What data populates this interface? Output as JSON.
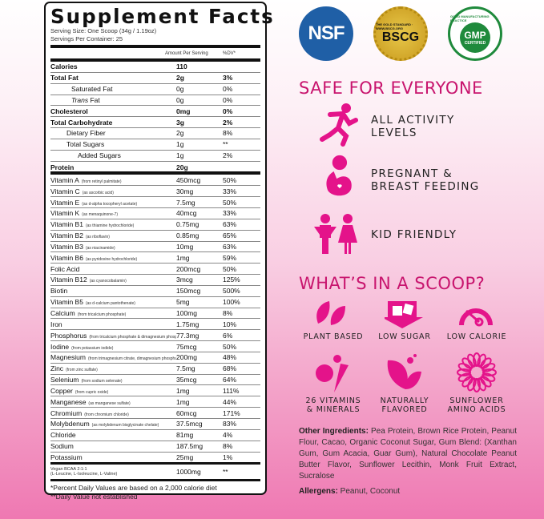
{
  "label": {
    "title": "Supplement Facts",
    "serving_size": "Serving Size: One Scoop (34g / 1.19oz)",
    "servings_per_container": "Servings Per Container: 25",
    "col_amount": "Amount Per Serving",
    "col_dv": "%DV*",
    "macros": [
      {
        "name": "Calories",
        "amount": "110",
        "dv": "",
        "bold": true,
        "indent": 0
      },
      {
        "name": "Total Fat",
        "amount": "2g",
        "dv": "3%",
        "bold": true,
        "indent": 0
      },
      {
        "name": "Saturated Fat",
        "amount": "0g",
        "dv": "0%",
        "bold": false,
        "indent": 2
      },
      {
        "name": "Trans Fat",
        "amount": "0g",
        "dv": "0%",
        "bold": false,
        "indent": 2,
        "italic": "Trans"
      },
      {
        "name": "Cholesterol",
        "amount": "0mg",
        "dv": "0%",
        "bold": true,
        "indent": 0
      },
      {
        "name": "Total Carbohydrate",
        "amount": "3g",
        "dv": "2%",
        "bold": true,
        "indent": 0
      },
      {
        "name": "Dietary Fiber",
        "amount": "2g",
        "dv": "8%",
        "bold": false,
        "indent": 1
      },
      {
        "name": "Total Sugars",
        "amount": "1g",
        "dv": "**",
        "bold": false,
        "indent": 1
      },
      {
        "name": "Added Sugars",
        "amount": "1g",
        "dv": "2%",
        "bold": false,
        "indent": 3
      },
      {
        "name": "Protein",
        "amount": "20g",
        "dv": "",
        "bold": true,
        "indent": 0
      }
    ],
    "nutrients": [
      {
        "name": "Vitamin A",
        "source": "(from retinyl palmitate)",
        "amount": "450mcg",
        "dv": "50%"
      },
      {
        "name": "Vitamin C",
        "source": "(as ascorbic acid)",
        "amount": "30mg",
        "dv": "33%"
      },
      {
        "name": "Vitamin E",
        "source": "(as d-alpha tocopheryl acetate)",
        "amount": "7.5mg",
        "dv": "50%"
      },
      {
        "name": "Vitamin K",
        "source": "(as menaquinone-7)",
        "amount": "40mcg",
        "dv": "33%"
      },
      {
        "name": "Vitamin B1",
        "source": "(as thiamine hydrochloride)",
        "amount": "0.75mg",
        "dv": "63%"
      },
      {
        "name": "Vitamin B2",
        "source": "(as riboflavin)",
        "amount": "0.85mg",
        "dv": "65%"
      },
      {
        "name": "Vitamin B3",
        "source": "(as niacinamide)",
        "amount": "10mg",
        "dv": "63%"
      },
      {
        "name": "Vitamin B6",
        "source": "(as pyridoxine hydrochloride)",
        "amount": "1mg",
        "dv": "59%"
      },
      {
        "name": "Folic Acid",
        "source": "",
        "amount": "200mcg",
        "dv": "50%"
      },
      {
        "name": "Vitamin B12",
        "source": "(as cyanocobalamin)",
        "amount": "3mcg",
        "dv": "125%"
      },
      {
        "name": "Biotin",
        "source": "",
        "amount": "150mcg",
        "dv": "500%"
      },
      {
        "name": "Vitamin B5",
        "source": "(as d-calcium pantothenate)",
        "amount": "5mg",
        "dv": "100%"
      },
      {
        "name": "Calcium",
        "source": "(from tricalcium phosphate)",
        "amount": "100mg",
        "dv": "8%"
      },
      {
        "name": "Iron",
        "source": "",
        "amount": "1.75mg",
        "dv": "10%"
      },
      {
        "name": "Phosphorus",
        "source": "(from tricalcium phosphate & dimagnesium phosphate)",
        "amount": "77.3mg",
        "dv": "6%"
      },
      {
        "name": "Iodine",
        "source": "(from potassium iodide)",
        "amount": "75mcg",
        "dv": "50%"
      },
      {
        "name": "Magnesium",
        "source": "(from trimagnesium citrate, dimagnesium phosphate)",
        "amount": "200mg",
        "dv": "48%"
      },
      {
        "name": "Zinc",
        "source": "(from zinc sulfate)",
        "amount": "7.5mg",
        "dv": "68%"
      },
      {
        "name": "Selenium",
        "source": "(from sodium selenate)",
        "amount": "35mcg",
        "dv": "64%"
      },
      {
        "name": "Copper",
        "source": "(from cupric oxide)",
        "amount": "1mg",
        "dv": "111%"
      },
      {
        "name": "Manganese",
        "source": "(as manganese sulfate)",
        "amount": "1mg",
        "dv": "44%"
      },
      {
        "name": "Chromium",
        "source": "(from chromium chloride)",
        "amount": "60mcg",
        "dv": "171%"
      },
      {
        "name": "Molybdenum",
        "source": "(as molybdenum bisglycinate chelate)",
        "amount": "37.5mcg",
        "dv": "83%"
      },
      {
        "name": "Chloride",
        "source": "",
        "amount": "81mg",
        "dv": "4%"
      },
      {
        "name": "Sodium",
        "source": "",
        "amount": "187.5mg",
        "dv": "8%"
      },
      {
        "name": "Potassium",
        "source": "",
        "amount": "25mg",
        "dv": "1%"
      }
    ],
    "bcaa": {
      "name": "Vegan BCAA 2:1:1",
      "source": "(L-Leucine, L-Isoleucine, L-Valine)",
      "amount": "1000mg",
      "dv": "**"
    },
    "footnote1": "*Percent Daily Values are based on a 2,000 calorie diet",
    "footnote2": "**Daily Value not established"
  },
  "badges": {
    "nsf": "NSF",
    "bscg": "BSCG",
    "bscg_ring": "THE GOLD STANDARD · WWW.BSCG.ORG",
    "gmp": "GMP",
    "gmp_sub": "CERTIFIED",
    "gmp_ring": "GOOD MANUFACTURING PRACTICE"
  },
  "safe": {
    "heading": "SAFE FOR EVERYONE",
    "items": [
      {
        "icon": "runner-icon",
        "line1": "ALL ACTIVITY",
        "line2": "LEVELS"
      },
      {
        "icon": "pregnant-icon",
        "line1": "PREGNANT &",
        "line2": "BREAST FEEDING"
      },
      {
        "icon": "kids-icon",
        "line1": "KID FRIENDLY",
        "line2": ""
      }
    ]
  },
  "scoop": {
    "heading": "WHAT’S IN A SCOOP?",
    "items": [
      {
        "icon": "leaves-icon",
        "line1": "PLANT BASED",
        "line2": ""
      },
      {
        "icon": "sugar-cubes-icon",
        "line1": "LOW SUGAR",
        "line2": ""
      },
      {
        "icon": "gauge-icon",
        "line1": "LOW CALORIE",
        "line2": ""
      },
      {
        "icon": "fruit-vegetable-icon",
        "line1": "26 VITAMINS",
        "line2": "& MINERALS"
      },
      {
        "icon": "leaf-drops-icon",
        "line1": "NATURALLY",
        "line2": "FLAVORED"
      },
      {
        "icon": "sunflower-icon",
        "line1": "SUNFLOWER",
        "line2": "AMINO ACIDS"
      }
    ]
  },
  "ingredients": {
    "label": "Other Ingredients:",
    "text": " Pea Protein, Brown Rice Protein, Peanut Flour, Cacao, Organic Coconut Sugar, Gum Blend: (Xanthan Gum, Gum Acacia, Guar Gum), Natural Chocolate Peanut Butter Flavor, Sunflower Lecithin, Monk Fruit Extract, Sucralose"
  },
  "allergens": {
    "label": "Allergens:",
    "text": " Peanut, Coconut"
  },
  "colors": {
    "accent": "#c8156e",
    "icon": "#e4138a",
    "nsf_blue": "#1f5fa6",
    "gold": "#d4ae2c",
    "gmp_green": "#1f8a3c"
  }
}
